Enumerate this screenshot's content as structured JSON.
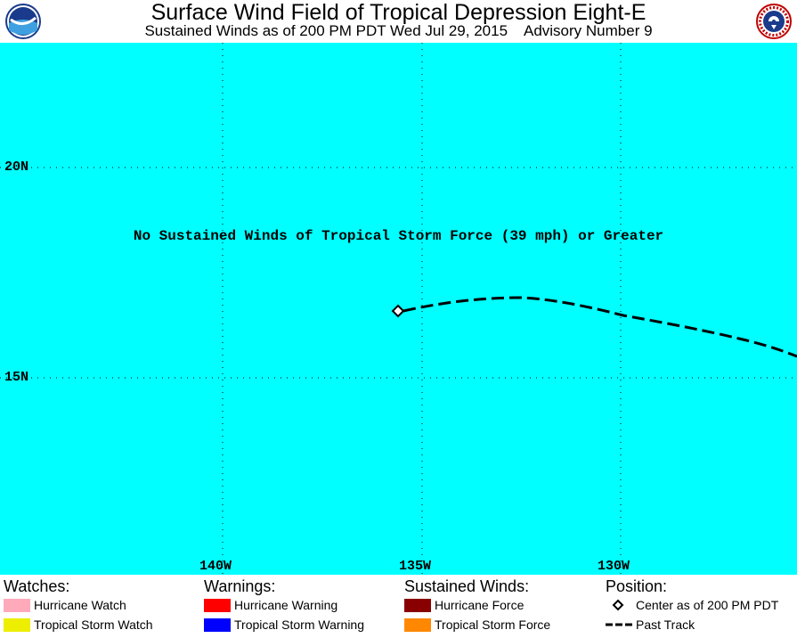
{
  "header": {
    "title": "Surface Wind Field of Tropical Depression Eight-E",
    "subtitle": "Sustained Winds as of 200 PM PDT Wed Jul 29, 2015    Advisory Number 9",
    "left_logo": "noaa-logo",
    "right_logo": "national-weather-service-logo"
  },
  "map": {
    "background_color": "#00ffff",
    "message": "No Sustained Winds of Tropical Storm Force (39 mph) or Greater",
    "lat_labels": [
      "20N",
      "15N"
    ],
    "lon_labels": [
      "140W",
      "135W",
      "130W"
    ],
    "center_marker": "diamond-icon",
    "track": "past-track-dashed-line"
  },
  "legend": {
    "watches": {
      "heading": "Watches:",
      "items": [
        {
          "label": "Hurricane Watch",
          "color": "#ffaabb"
        },
        {
          "label": "Tropical Storm Watch",
          "color": "#eeee00"
        }
      ]
    },
    "warnings": {
      "heading": "Warnings:",
      "items": [
        {
          "label": "Hurricane Warning",
          "color": "#ff0000"
        },
        {
          "label": "Tropical Storm Warning",
          "color": "#0000ff"
        }
      ]
    },
    "winds": {
      "heading": "Sustained Winds:",
      "items": [
        {
          "label": "Hurricane Force",
          "color": "#880000"
        },
        {
          "label": "Tropical Storm Force",
          "color": "#ff8800"
        }
      ]
    },
    "position": {
      "heading": "Position:",
      "items": [
        {
          "label": "Center as of 200 PM PDT",
          "icon": "diamond-icon"
        },
        {
          "label": "Past Track",
          "icon": "dashed-line-icon"
        }
      ]
    }
  }
}
